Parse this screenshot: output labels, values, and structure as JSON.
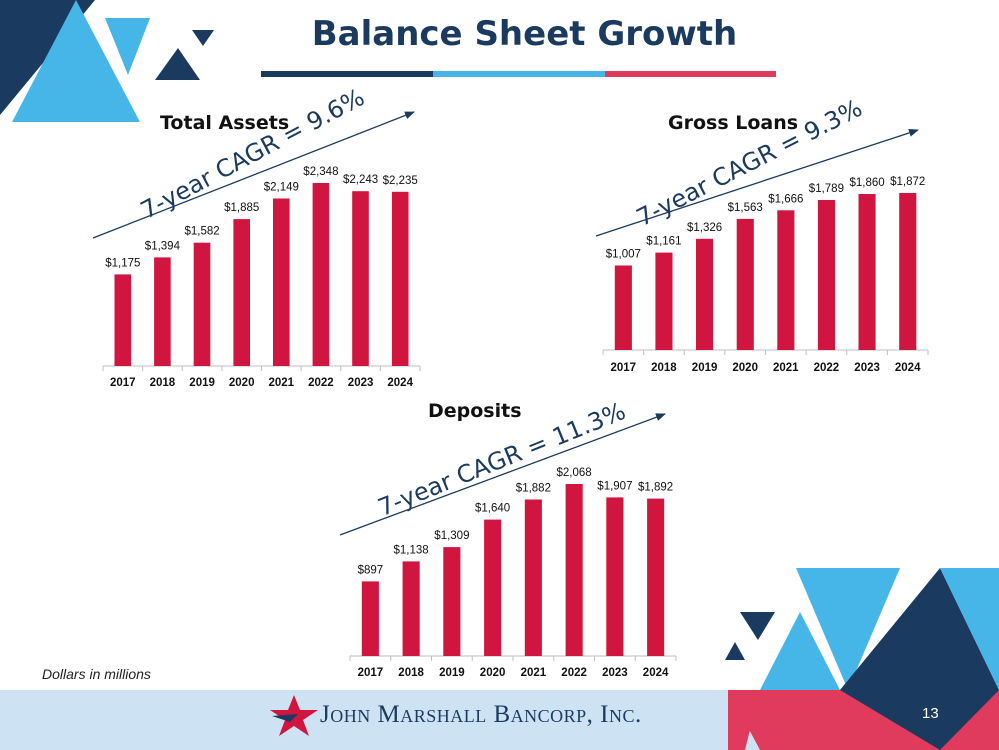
{
  "page": {
    "title": "Balance Sheet Growth",
    "note": "Dollars in millions",
    "footer_company": "John Marshall Bancorp, Inc.",
    "page_number": "13"
  },
  "colors": {
    "bar": "#d0153f",
    "navy": "#1b3a5f",
    "light_blue": "#46b6e8",
    "pink": "#e03a5d",
    "footer_bg": "#cde3f4"
  },
  "chart_data": [
    {
      "type": "bar",
      "title": "Total Assets",
      "annotation": "7-year CAGR = 9.6%",
      "categories": [
        "2017",
        "2018",
        "2019",
        "2020",
        "2021",
        "2022",
        "2023",
        "2024"
      ],
      "values": [
        1175,
        1394,
        1582,
        1885,
        2149,
        2348,
        2243,
        2235
      ],
      "labels": [
        "$1,175",
        "$1,394",
        "$1,582",
        "$1,885",
        "$2,149",
        "$2,348",
        "$2,243",
        "$2,235"
      ],
      "ylim": [
        0,
        2500
      ]
    },
    {
      "type": "bar",
      "title": "Gross Loans",
      "annotation": "7-year CAGR = 9.3%",
      "categories": [
        "2017",
        "2018",
        "2019",
        "2020",
        "2021",
        "2022",
        "2023",
        "2024"
      ],
      "values": [
        1007,
        1161,
        1326,
        1563,
        1666,
        1789,
        1860,
        1872
      ],
      "labels": [
        "$1,007",
        "$1,161",
        "$1,326",
        "$1,563",
        "$1,666",
        "$1,789",
        "$1,860",
        "$1,872"
      ],
      "ylim": [
        0,
        2000
      ]
    },
    {
      "type": "bar",
      "title": "Deposits",
      "annotation": "7-year CAGR = 11.3%",
      "categories": [
        "2017",
        "2018",
        "2019",
        "2020",
        "2021",
        "2022",
        "2023",
        "2024"
      ],
      "values": [
        897,
        1138,
        1309,
        1640,
        1882,
        2068,
        1907,
        1892
      ],
      "labels": [
        "$897",
        "$1,138",
        "$1,309",
        "$1,640",
        "$1,882",
        "$2,068",
        "$1,907",
        "$1,892"
      ],
      "ylim": [
        0,
        2200
      ]
    }
  ]
}
